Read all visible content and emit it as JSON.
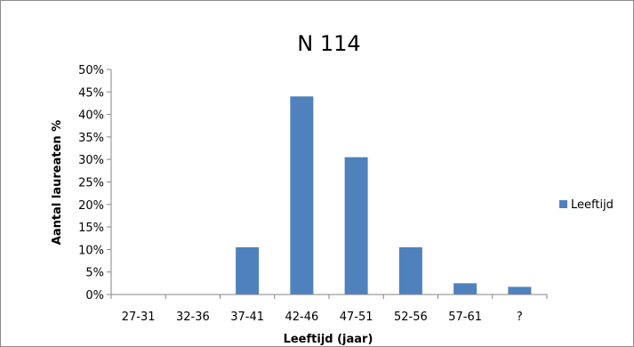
{
  "chart_data": {
    "type": "bar",
    "title": "N 114",
    "xlabel": "Leeftijd (jaar)",
    "ylabel": "Aantal laureaten %",
    "categories": [
      "27-31",
      "32-36",
      "37-41",
      "42-46",
      "47-51",
      "52-56",
      "57-61",
      "?"
    ],
    "series": [
      {
        "name": "Leeftijd",
        "color": "#4f81bd",
        "values": [
          0,
          0,
          10.5,
          44.0,
          30.5,
          10.5,
          2.5,
          1.7
        ]
      }
    ],
    "yticks": [
      "0%",
      "5%",
      "10%",
      "15%",
      "20%",
      "25%",
      "30%",
      "35%",
      "40%",
      "45%",
      "50%"
    ],
    "ylim": [
      0,
      50
    ],
    "grid": false,
    "legend": "right"
  }
}
